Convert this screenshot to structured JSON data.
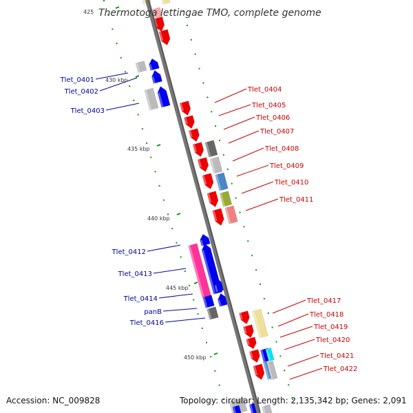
{
  "title": "Thermotoga lettingae TMO, complete genome",
  "footer": {
    "accession": "Accession: NC_009828",
    "summary": "Topology: circular; Length: 2,135,342 bp; Genes: 2,091"
  },
  "colors": {
    "backbone": "#777777",
    "forward_label": "#c80000",
    "reverse_label": "#0000a0",
    "dot": "#009900"
  },
  "ticks": [
    "425",
    "430 kbp",
    "435 kbp",
    "440 kbp",
    "445 kbp",
    "450 kbp"
  ],
  "labels": {
    "left": [
      "Tlet_0401",
      "Tlet_0402",
      "Tlet_0403",
      "Tlet_0412",
      "Tlet_0413",
      "Tlet_0414",
      "panB",
      "Tlet_0416"
    ],
    "right": [
      "Tlet_0404",
      "Tlet_0405",
      "Tlet_0406",
      "Tlet_0407",
      "Tlet_0408",
      "Tlet_0409",
      "Tlet_0410",
      "Tlet_0411",
      "Tlet_0417",
      "Tlet_0418",
      "Tlet_0419",
      "Tlet_0420",
      "Tlet_0421",
      "Tlet_0422"
    ]
  },
  "feature_colors": {
    "red": "#ee0000",
    "blue": "#0000ee",
    "pink": "#ff3399",
    "gray": "#bbbbbb",
    "dark_gray": "#666666",
    "steel_blue": "#4a86c8",
    "olive": "#99aa33",
    "salmon": "#f08080",
    "khaki": "#eee099",
    "cyan": "#00e5ee",
    "light_pink": "#f4aaaa"
  }
}
